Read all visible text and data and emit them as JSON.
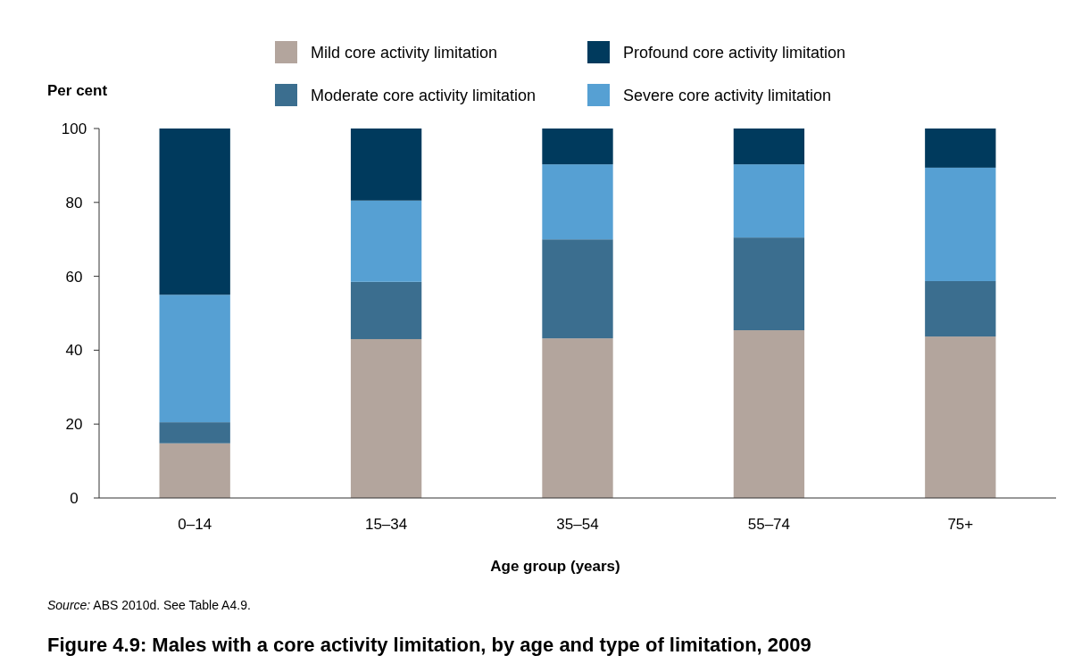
{
  "chart_data": {
    "type": "bar",
    "stacked": true,
    "title": "Figure 4.9: Males with a core activity limitation, by age and type of limitation, 2009",
    "xlabel": "Age group (years)",
    "ylabel": "Per cent",
    "categories": [
      "0–14",
      "15–34",
      "35–54",
      "55–74",
      "75+"
    ],
    "series": [
      {
        "name": "Mild core activity limitation",
        "color": "#b3a59d",
        "values": [
          14.8,
          43,
          43.2,
          45.4,
          43.7
        ]
      },
      {
        "name": "Moderate core activity limitation",
        "color": "#3b6e8f",
        "values": [
          5.7,
          15.5,
          26.8,
          25.1,
          15
        ]
      },
      {
        "name": "Severe core activity limitation",
        "color": "#56a0d3",
        "values": [
          34.5,
          22,
          20.3,
          19.8,
          30.7
        ]
      },
      {
        "name": "Profound core activity limitation",
        "color": "#003a5d",
        "values": [
          45,
          19.5,
          9.7,
          9.7,
          10.6
        ]
      }
    ],
    "ylim": [
      0,
      100
    ],
    "yticks": [
      0,
      20,
      40,
      60,
      80,
      100
    ],
    "grid": false,
    "legend": "top",
    "annotations": [
      "Source: ABS 2010d. See Table A4.9."
    ]
  }
}
